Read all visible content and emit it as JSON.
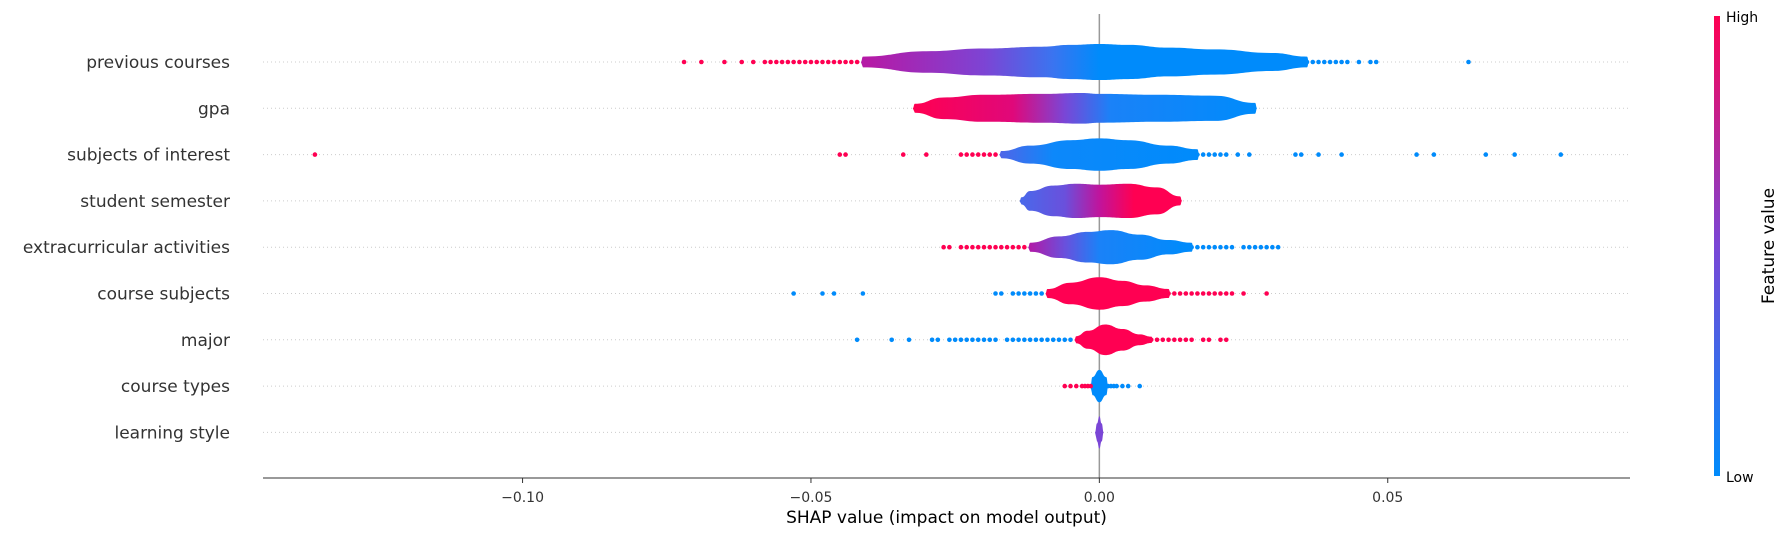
{
  "chart_data": {
    "type": "violin",
    "xlabel": "SHAP value (impact on model output)",
    "xlim": [
      -0.145,
      0.092
    ],
    "xticks": [
      {
        "value": -0.1,
        "label": "−0.10"
      },
      {
        "value": -0.05,
        "label": "−0.05"
      },
      {
        "value": 0.0,
        "label": "0.00"
      },
      {
        "value": 0.05,
        "label": "0.05"
      }
    ],
    "colorbar": {
      "label": "Feature value",
      "high": "High",
      "low": "Low",
      "high_color": "#ff0052",
      "low_color": "#008bfb"
    },
    "features": [
      {
        "name": "previous courses",
        "profile": [
          [
            -0.041,
            0.3
          ],
          [
            -0.03,
            0.6
          ],
          [
            -0.02,
            0.75
          ],
          [
            -0.01,
            0.85
          ],
          [
            -0.005,
            0.95
          ],
          [
            0.0,
            1.0
          ],
          [
            0.005,
            0.95
          ],
          [
            0.012,
            0.8
          ],
          [
            0.02,
            0.7
          ],
          [
            0.03,
            0.5
          ],
          [
            0.036,
            0.3
          ]
        ],
        "colors": [
          [
            -0.04,
            "#b51aa6"
          ],
          [
            -0.02,
            "#7d44d4"
          ],
          [
            -0.008,
            "#3a74f0"
          ],
          [
            0.0,
            "#008bfb"
          ],
          [
            0.036,
            "#008bfb"
          ]
        ],
        "high_points": [
          -0.072,
          -0.069,
          -0.065,
          -0.062,
          -0.06,
          -0.058,
          -0.057,
          -0.056,
          -0.055,
          -0.054,
          -0.053,
          -0.052,
          -0.051,
          -0.05,
          -0.049,
          -0.048,
          -0.047,
          -0.046,
          -0.045,
          -0.044,
          -0.043,
          -0.042
        ],
        "low_points": [
          0.036,
          0.037,
          0.038,
          0.039,
          0.04,
          0.041,
          0.042,
          0.043,
          0.045,
          0.047,
          0.048,
          0.064
        ]
      },
      {
        "name": "gpa",
        "profile": [
          [
            -0.032,
            0.25
          ],
          [
            -0.027,
            0.6
          ],
          [
            -0.02,
            0.75
          ],
          [
            -0.01,
            0.8
          ],
          [
            -0.003,
            0.85
          ],
          [
            0.0,
            0.8
          ],
          [
            0.01,
            0.75
          ],
          [
            0.02,
            0.7
          ],
          [
            0.027,
            0.3
          ]
        ],
        "colors": [
          [
            -0.032,
            "#ff0052"
          ],
          [
            -0.015,
            "#e0087a"
          ],
          [
            -0.006,
            "#7a46d6"
          ],
          [
            0.002,
            "#1a82f8"
          ],
          [
            0.027,
            "#008bfb"
          ]
        ],
        "high_points": [],
        "low_points": []
      },
      {
        "name": "subjects of interest",
        "profile": [
          [
            -0.017,
            0.2
          ],
          [
            -0.012,
            0.5
          ],
          [
            -0.005,
            0.8
          ],
          [
            0.0,
            0.9
          ],
          [
            0.005,
            0.8
          ],
          [
            0.012,
            0.5
          ],
          [
            0.017,
            0.3
          ]
        ],
        "colors": [
          [
            -0.017,
            "#4e66e8"
          ],
          [
            -0.008,
            "#0d88fa"
          ],
          [
            0.017,
            "#008bfb"
          ]
        ],
        "high_points": [
          -0.136,
          -0.045,
          -0.044,
          -0.034,
          -0.03,
          -0.024,
          -0.023,
          -0.022,
          -0.021,
          -0.02,
          -0.019,
          -0.018
        ],
        "low_points": [
          0.017,
          0.018,
          0.019,
          0.02,
          0.021,
          0.022,
          0.024,
          0.026,
          0.034,
          0.035,
          0.038,
          0.042,
          0.055,
          0.058,
          0.067,
          0.072,
          0.08
        ]
      },
      {
        "name": "student semester",
        "profile": [
          [
            -0.0135,
            0.2
          ],
          [
            -0.012,
            0.55
          ],
          [
            -0.008,
            0.85
          ],
          [
            -0.004,
            0.95
          ],
          [
            0.0,
            0.9
          ],
          [
            0.005,
            0.95
          ],
          [
            0.01,
            0.75
          ],
          [
            0.014,
            0.25
          ]
        ],
        "colors": [
          [
            -0.0135,
            "#4a68ea"
          ],
          [
            -0.006,
            "#6a50dc"
          ],
          [
            0.0,
            "#c0149c"
          ],
          [
            0.006,
            "#ff0052"
          ],
          [
            0.014,
            "#ff0052"
          ]
        ],
        "high_points": [],
        "low_points": []
      },
      {
        "name": "extracurricular activities",
        "profile": [
          [
            -0.012,
            0.25
          ],
          [
            -0.007,
            0.6
          ],
          [
            -0.002,
            0.85
          ],
          [
            0.002,
            0.95
          ],
          [
            0.007,
            0.7
          ],
          [
            0.012,
            0.4
          ],
          [
            0.016,
            0.25
          ]
        ],
        "colors": [
          [
            -0.012,
            "#b01aa8"
          ],
          [
            -0.006,
            "#6a50dc"
          ],
          [
            0.0,
            "#1a82f8"
          ],
          [
            0.016,
            "#008bfb"
          ]
        ],
        "high_points": [
          -0.027,
          -0.026,
          -0.024,
          -0.023,
          -0.022,
          -0.021,
          -0.02,
          -0.019,
          -0.018,
          -0.017,
          -0.016,
          -0.015,
          -0.014,
          -0.013
        ],
        "low_points": [
          0.014,
          0.015,
          0.016,
          0.017,
          0.018,
          0.019,
          0.02,
          0.021,
          0.022,
          0.023,
          0.025,
          0.026,
          0.027,
          0.028,
          0.029,
          0.03,
          0.031
        ]
      },
      {
        "name": "course subjects",
        "profile": [
          [
            -0.009,
            0.25
          ],
          [
            -0.005,
            0.6
          ],
          [
            0.0,
            0.9
          ],
          [
            0.004,
            0.7
          ],
          [
            0.008,
            0.45
          ],
          [
            0.012,
            0.25
          ]
        ],
        "colors": [
          [
            -0.009,
            "#ff0052"
          ],
          [
            0.012,
            "#ff0052"
          ]
        ],
        "high_points": [
          0.012,
          0.013,
          0.014,
          0.015,
          0.016,
          0.017,
          0.018,
          0.019,
          0.02,
          0.021,
          0.022,
          0.023,
          0.025,
          0.029
        ],
        "low_points": [
          -0.053,
          -0.048,
          -0.046,
          -0.041,
          -0.018,
          -0.017,
          -0.015,
          -0.014,
          -0.013,
          -0.012,
          -0.011,
          -0.01
        ]
      },
      {
        "name": "major",
        "profile": [
          [
            -0.004,
            0.2
          ],
          [
            -0.002,
            0.5
          ],
          [
            0.001,
            0.85
          ],
          [
            0.004,
            0.6
          ],
          [
            0.007,
            0.3
          ],
          [
            0.009,
            0.18
          ]
        ],
        "colors": [
          [
            -0.004,
            "#ff0052"
          ],
          [
            0.009,
            "#ff0052"
          ]
        ],
        "high_points": [
          0.009,
          0.01,
          0.011,
          0.012,
          0.013,
          0.014,
          0.015,
          0.016,
          0.018,
          0.019,
          0.021,
          0.022
        ],
        "low_points": [
          -0.042,
          -0.036,
          -0.033,
          -0.029,
          -0.028,
          -0.026,
          -0.025,
          -0.024,
          -0.023,
          -0.022,
          -0.021,
          -0.02,
          -0.019,
          -0.018,
          -0.016,
          -0.015,
          -0.014,
          -0.013,
          -0.012,
          -0.011,
          -0.01,
          -0.009,
          -0.008,
          -0.007,
          -0.006,
          -0.005
        ]
      },
      {
        "name": "course types",
        "profile": [
          [
            -0.0012,
            0.5
          ],
          [
            0.0,
            0.9
          ],
          [
            0.0012,
            0.5
          ]
        ],
        "colors": [
          [
            -0.0012,
            "#008bfb"
          ],
          [
            0.0012,
            "#008bfb"
          ]
        ],
        "high_points": [
          -0.006,
          -0.005,
          -0.004,
          -0.003,
          -0.0025,
          -0.002,
          -0.0015
        ],
        "low_points": [
          0.0015,
          0.002,
          0.0025,
          0.003,
          0.004,
          0.005,
          0.007
        ]
      },
      {
        "name": "learning style",
        "profile": [
          [
            -0.0004,
            0.5
          ],
          [
            0.0,
            0.9
          ],
          [
            0.0004,
            0.5
          ]
        ],
        "colors": [
          [
            -0.0004,
            "#7a46d6"
          ],
          [
            0.0004,
            "#7a46d6"
          ]
        ],
        "high_points": [],
        "low_points": []
      }
    ]
  }
}
